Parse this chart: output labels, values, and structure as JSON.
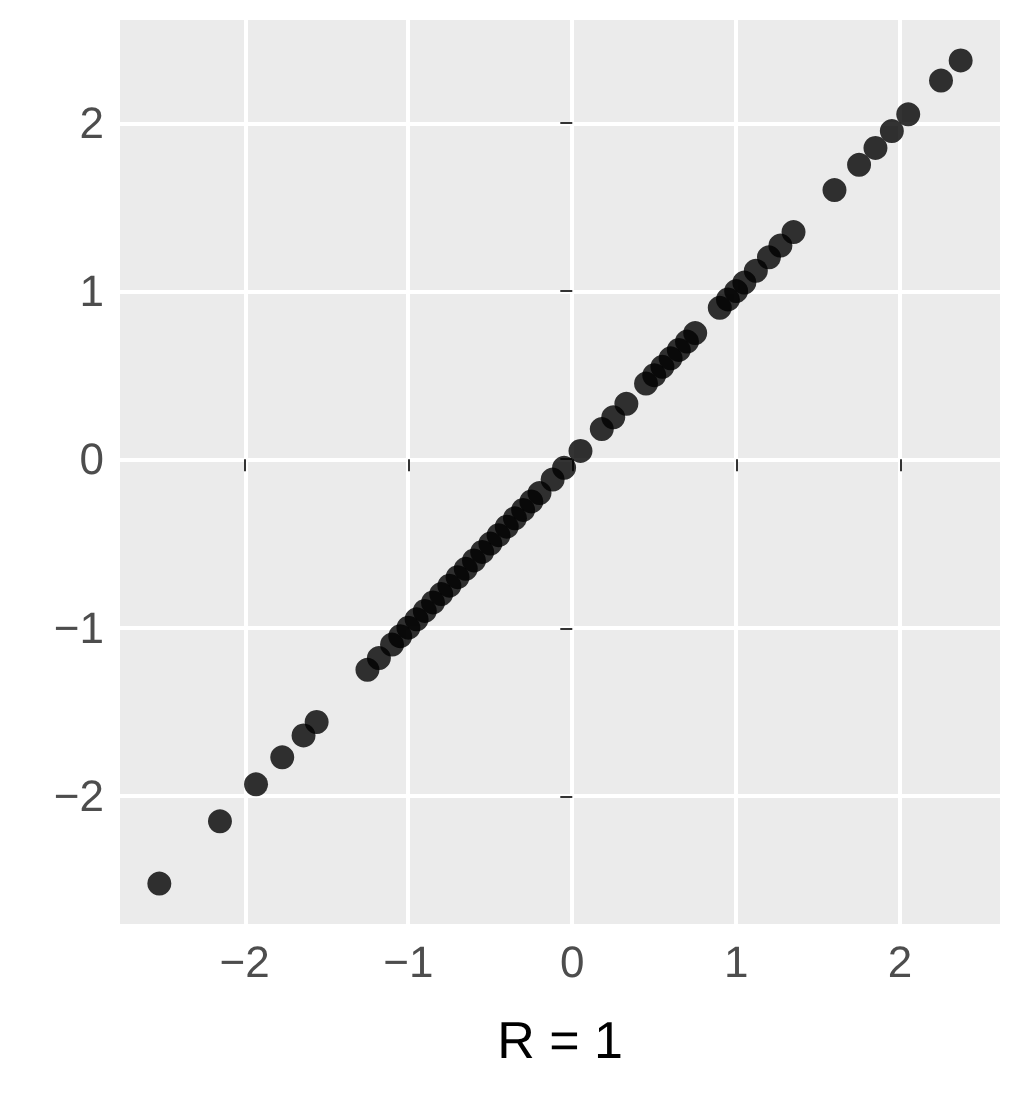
{
  "chart_data": {
    "type": "scatter",
    "xlabel": "R = 1",
    "x": [
      -2.52,
      -2.15,
      -1.93,
      -1.77,
      -1.64,
      -1.56,
      -1.25,
      -1.18,
      -1.1,
      -1.05,
      -1.0,
      -0.95,
      -0.9,
      -0.85,
      -0.8,
      -0.75,
      -0.7,
      -0.65,
      -0.6,
      -0.55,
      -0.5,
      -0.45,
      -0.4,
      -0.35,
      -0.3,
      -0.25,
      -0.2,
      -0.12,
      -0.05,
      0.05,
      0.18,
      0.25,
      0.33,
      0.45,
      0.5,
      0.55,
      0.6,
      0.65,
      0.7,
      0.75,
      0.9,
      0.95,
      1.0,
      1.05,
      1.12,
      1.2,
      1.27,
      1.35,
      1.6,
      1.75,
      1.85,
      1.95,
      2.05,
      2.25,
      2.37
    ],
    "values": [
      -2.52,
      -2.15,
      -1.93,
      -1.77,
      -1.64,
      -1.56,
      -1.25,
      -1.18,
      -1.1,
      -1.05,
      -1.0,
      -0.95,
      -0.9,
      -0.85,
      -0.8,
      -0.75,
      -0.7,
      -0.65,
      -0.6,
      -0.55,
      -0.5,
      -0.45,
      -0.4,
      -0.35,
      -0.3,
      -0.25,
      -0.2,
      -0.12,
      -0.05,
      0.05,
      0.18,
      0.25,
      0.33,
      0.45,
      0.5,
      0.55,
      0.6,
      0.65,
      0.7,
      0.75,
      0.9,
      0.95,
      1.0,
      1.05,
      1.12,
      1.2,
      1.27,
      1.35,
      1.6,
      1.75,
      1.85,
      1.95,
      2.05,
      2.25,
      2.37
    ],
    "color": "#000000",
    "marker": "circle",
    "grid": true,
    "xlim": [
      -2.76,
      2.61
    ],
    "ylim": [
      -2.76,
      2.61
    ],
    "xticks": [
      {
        "value": -2,
        "label": "−2"
      },
      {
        "value": -1,
        "label": "−1"
      },
      0,
      1,
      2
    ],
    "yticks": [
      {
        "value": -2,
        "label": "−2"
      },
      {
        "value": -1,
        "label": "−1"
      },
      0,
      1,
      2
    ]
  }
}
